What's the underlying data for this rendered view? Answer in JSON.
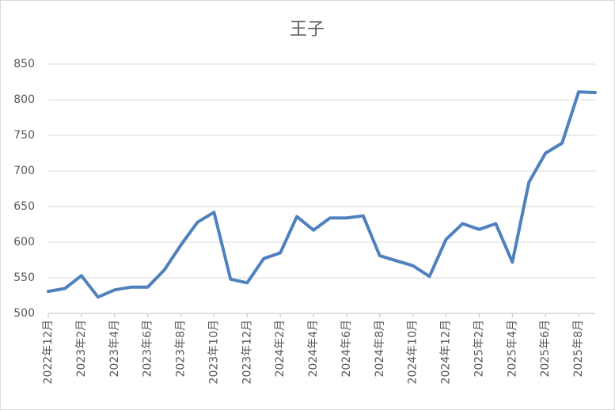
{
  "chart_data": {
    "type": "line",
    "title": "王子",
    "categories": [
      "2022年12月",
      null,
      "2023年2月",
      null,
      "2023年4月",
      null,
      "2023年6月",
      null,
      "2023年8月",
      null,
      "2023年10月",
      null,
      "2023年12月",
      null,
      "2024年2月",
      null,
      "2024年4月",
      null,
      "2024年6月",
      null,
      "2024年8月",
      null,
      "2024年10月",
      null,
      "2024年12月",
      null,
      "2025年2月",
      null,
      "2025年4月",
      null,
      "2025年6月",
      null,
      "2025年8月",
      null
    ],
    "series": [
      {
        "name": "王子",
        "color": "#4f81bd",
        "values": [
          531,
          535,
          553,
          523,
          533,
          537,
          537,
          561,
          596,
          628,
          642,
          548,
          543,
          577,
          585,
          636,
          617,
          634,
          634,
          637,
          581,
          574,
          567,
          552,
          604,
          626,
          618,
          626,
          572,
          684,
          725,
          739,
          811,
          810
        ]
      }
    ],
    "ylim": [
      500,
      850
    ],
    "yticks": [
      500,
      550,
      600,
      650,
      700,
      750,
      800,
      850
    ],
    "grid": true
  }
}
